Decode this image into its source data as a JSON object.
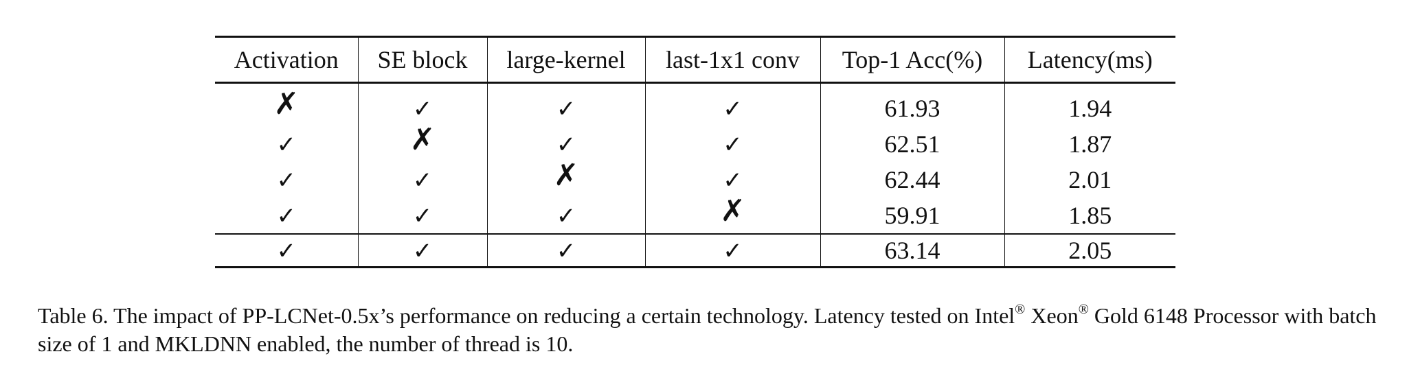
{
  "table": {
    "columns": [
      "Activation",
      "SE block",
      "large-kernel",
      "last-1x1 conv",
      "Top-1 Acc(%)",
      "Latency(ms)"
    ],
    "rows": [
      {
        "activation": "✗",
        "se_block": "✓",
        "large_kernel": "✓",
        "last_conv": "✓",
        "top1_acc": "61.93",
        "latency": "1.94"
      },
      {
        "activation": "✓",
        "se_block": "✗",
        "large_kernel": "✓",
        "last_conv": "✓",
        "top1_acc": "62.51",
        "latency": "1.87"
      },
      {
        "activation": "✓",
        "se_block": "✓",
        "large_kernel": "✗",
        "last_conv": "✓",
        "top1_acc": "62.44",
        "latency": "2.01"
      },
      {
        "activation": "✓",
        "se_block": "✓",
        "large_kernel": "✓",
        "last_conv": "✗",
        "top1_acc": "59.91",
        "latency": "1.85"
      },
      {
        "activation": "✓",
        "se_block": "✓",
        "large_kernel": "✓",
        "last_conv": "✓",
        "top1_acc": "63.14",
        "latency": "2.05"
      }
    ]
  },
  "caption": {
    "part1": "Table 6. The impact of PP-LCNet-0.5x’s performance on reducing a certain technology.  Latency tested on Intel",
    "reg1": "®",
    "part2": " Xeon",
    "reg2": "®",
    "part3": " Gold 6148 Processor with batch size of 1 and MKLDNN enabled, the number of thread is 10."
  }
}
